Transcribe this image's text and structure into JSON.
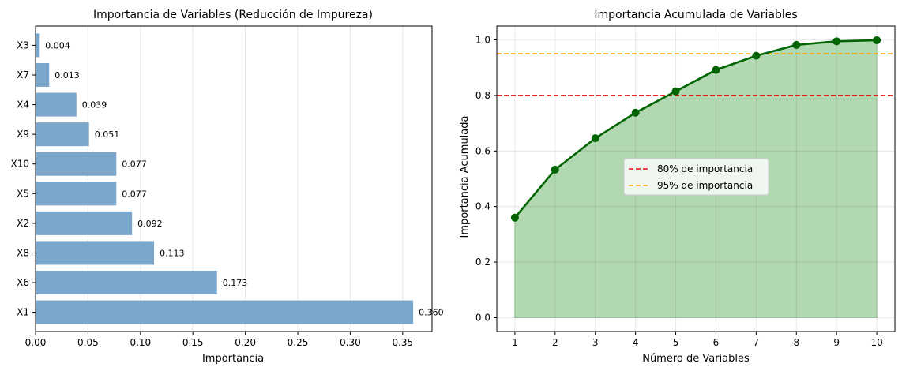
{
  "chart_data": [
    {
      "type": "bar",
      "orientation": "horizontal",
      "title": "Importancia de Variables (Reducción de Impureza)",
      "xlabel": "Importancia",
      "ylabel": "",
      "categories": [
        "X1",
        "X6",
        "X8",
        "X2",
        "X5",
        "X10",
        "X9",
        "X4",
        "X7",
        "X3"
      ],
      "values": [
        0.36,
        0.173,
        0.113,
        0.092,
        0.077,
        0.077,
        0.051,
        0.039,
        0.013,
        0.004
      ],
      "value_labels": [
        "0.360",
        "0.173",
        "0.113",
        "0.092",
        "0.077",
        "0.077",
        "0.051",
        "0.039",
        "0.013",
        "0.004"
      ],
      "xlim": [
        0,
        0.378
      ],
      "xticks": [
        0.0,
        0.05,
        0.1,
        0.15,
        0.2,
        0.25,
        0.3,
        0.35
      ],
      "xtick_labels": [
        "0.00",
        "0.05",
        "0.10",
        "0.15",
        "0.20",
        "0.25",
        "0.30",
        "0.35"
      ],
      "grid": "x",
      "bar_color": "#7ba7cc"
    },
    {
      "type": "line",
      "fill": "area",
      "title": "Importancia Acumulada de Variables",
      "xlabel": "Número de Variables",
      "ylabel": "Importancia Acumulada",
      "x": [
        1,
        2,
        3,
        4,
        5,
        6,
        7,
        8,
        9,
        10
      ],
      "y": [
        0.36,
        0.533,
        0.646,
        0.738,
        0.815,
        0.892,
        0.943,
        0.982,
        0.995,
        0.999
      ],
      "xlim": [
        0.55,
        10.45
      ],
      "ylim": [
        -0.05,
        1.05
      ],
      "xticks": [
        1,
        2,
        3,
        4,
        5,
        6,
        7,
        8,
        9,
        10
      ],
      "xtick_labels": [
        "1",
        "2",
        "3",
        "4",
        "5",
        "6",
        "7",
        "8",
        "9",
        "10"
      ],
      "yticks": [
        0.0,
        0.2,
        0.4,
        0.6,
        0.8,
        1.0
      ],
      "ytick_labels": [
        "0.0",
        "0.2",
        "0.4",
        "0.6",
        "0.8",
        "1.0"
      ],
      "grid": true,
      "line_color": "#006400",
      "fill_color": "#b2d8b2",
      "hlines": [
        {
          "y": 0.8,
          "color": "#dd1111",
          "label": "80% de importancia"
        },
        {
          "y": 0.95,
          "color": "#ffa500",
          "label": "95% de importancia"
        }
      ],
      "legend_position": "center"
    }
  ]
}
